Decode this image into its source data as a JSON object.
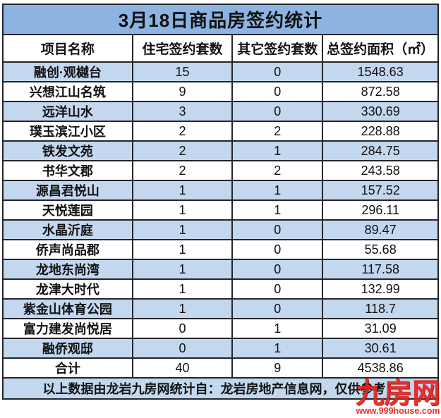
{
  "title": "3月18日商品房签约统计",
  "table": {
    "headers": {
      "name": "项目名称",
      "residential": "住宅签约套数",
      "other": "其它签约套数",
      "area": "总签约面积（㎡）"
    },
    "rows": [
      {
        "name": "融创·观樾台",
        "residential": "15",
        "other": "0",
        "area": "1548.63"
      },
      {
        "name": "兴想江山名筑",
        "residential": "9",
        "other": "0",
        "area": "872.58"
      },
      {
        "name": "远洋山水",
        "residential": "3",
        "other": "0",
        "area": "330.69"
      },
      {
        "name": "璞玉滨江小区",
        "residential": "2",
        "other": "2",
        "area": "228.88"
      },
      {
        "name": "铁发文苑",
        "residential": "2",
        "other": "1",
        "area": "284.75"
      },
      {
        "name": "书华文郡",
        "residential": "2",
        "other": "2",
        "area": "243.58"
      },
      {
        "name": "源昌君悦山",
        "residential": "1",
        "other": "1",
        "area": "157.52"
      },
      {
        "name": "天悦莲园",
        "residential": "1",
        "other": "1",
        "area": "296.11"
      },
      {
        "name": "水晶沂庭",
        "residential": "1",
        "other": "0",
        "area": "89.47"
      },
      {
        "name": "侨声尚品郡",
        "residential": "1",
        "other": "0",
        "area": "55.68"
      },
      {
        "name": "龙地东尚湾",
        "residential": "1",
        "other": "0",
        "area": "117.58"
      },
      {
        "name": "龙津大时代",
        "residential": "1",
        "other": "0",
        "area": "132.99"
      },
      {
        "name": "紫金山体育公园",
        "residential": "1",
        "other": "0",
        "area": "118.7"
      },
      {
        "name": "富力建发尚悦居",
        "residential": "0",
        "other": "1",
        "area": "31.09"
      },
      {
        "name": "融侨观邸",
        "residential": "0",
        "other": "1",
        "area": "30.61"
      }
    ],
    "total": {
      "name": "合计",
      "residential": "40",
      "other": "9",
      "area": "4538.86"
    }
  },
  "footer": {
    "note": "以上数据由龙岩九房网统计自：龙岩房地产信息网，仅供参考！"
  },
  "watermark": {
    "logo": "九房网",
    "url": "www.999house.com"
  },
  "colors": {
    "title_bg": "#8CB3E2",
    "row_alt_bg": "#C3D7EF",
    "border": "#23252C",
    "watermark_red": "#E5241D"
  }
}
